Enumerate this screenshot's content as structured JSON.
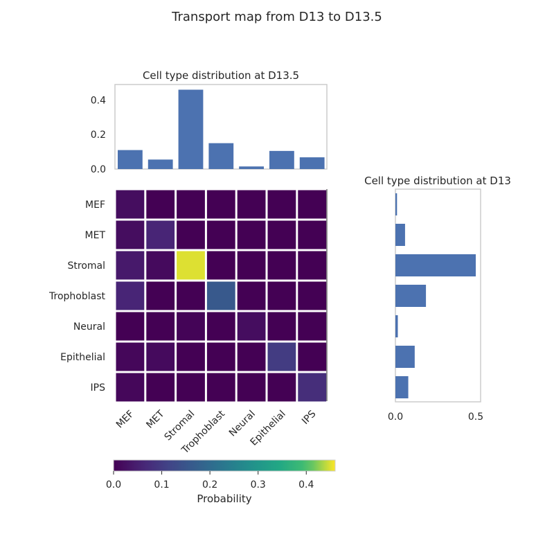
{
  "title": "Transport map from D13 to D13.5",
  "chart_data": [
    {
      "type": "heatmap",
      "row_labels": [
        "MEF",
        "MET",
        "Stromal",
        "Trophoblast",
        "Neural",
        "Epithelial",
        "IPS"
      ],
      "col_labels": [
        "MEF",
        "MET",
        "Stromal",
        "Trophoblast",
        "Neural",
        "Epithelial",
        "IPS"
      ],
      "values": [
        [
          0.02,
          0.0,
          0.0,
          0.0,
          0.0,
          0.0,
          0.0
        ],
        [
          0.02,
          0.06,
          0.0,
          0.0,
          0.0,
          0.0,
          0.0
        ],
        [
          0.04,
          0.015,
          0.45,
          0.0,
          0.0,
          0.0,
          0.0
        ],
        [
          0.06,
          0.0,
          0.0,
          0.16,
          0.0,
          0.0,
          0.0
        ],
        [
          0.0,
          0.0,
          0.005,
          0.0,
          0.02,
          0.0,
          0.0
        ],
        [
          0.01,
          0.015,
          0.0,
          0.0,
          0.0,
          0.1,
          0.0
        ],
        [
          0.01,
          0.0,
          0.0,
          0.0,
          0.0,
          0.0,
          0.075
        ]
      ],
      "colormap": "viridis",
      "vmin": 0,
      "vmax": 0.46
    },
    {
      "type": "bar",
      "title": "Cell type distribution at D13.5",
      "categories": [
        "MEF",
        "MET",
        "Stromal",
        "Trophoblast",
        "Neural",
        "Epithelial",
        "IPS"
      ],
      "values": [
        0.11,
        0.055,
        0.46,
        0.15,
        0.015,
        0.105,
        0.068
      ],
      "ylim": [
        0,
        0.49
      ],
      "yticks": [
        "0.0",
        "0.2",
        "0.4"
      ],
      "color": "#4c72b0"
    },
    {
      "type": "bar",
      "orientation": "horizontal",
      "title": "Cell type distribution at D13",
      "categories": [
        "MEF",
        "MET",
        "Stromal",
        "Trophoblast",
        "Neural",
        "Epithelial",
        "IPS"
      ],
      "values": [
        0.01,
        0.06,
        0.5,
        0.19,
        0.015,
        0.12,
        0.08
      ],
      "xlim": [
        0,
        0.53
      ],
      "xticks": [
        "0.0",
        "0.5"
      ],
      "color": "#4c72b0"
    },
    {
      "type": "colorbar",
      "label": "Probability",
      "ticks": [
        "0.0",
        "0.1",
        "0.2",
        "0.3",
        "0.4"
      ],
      "vmin": 0,
      "vmax": 0.46
    }
  ]
}
